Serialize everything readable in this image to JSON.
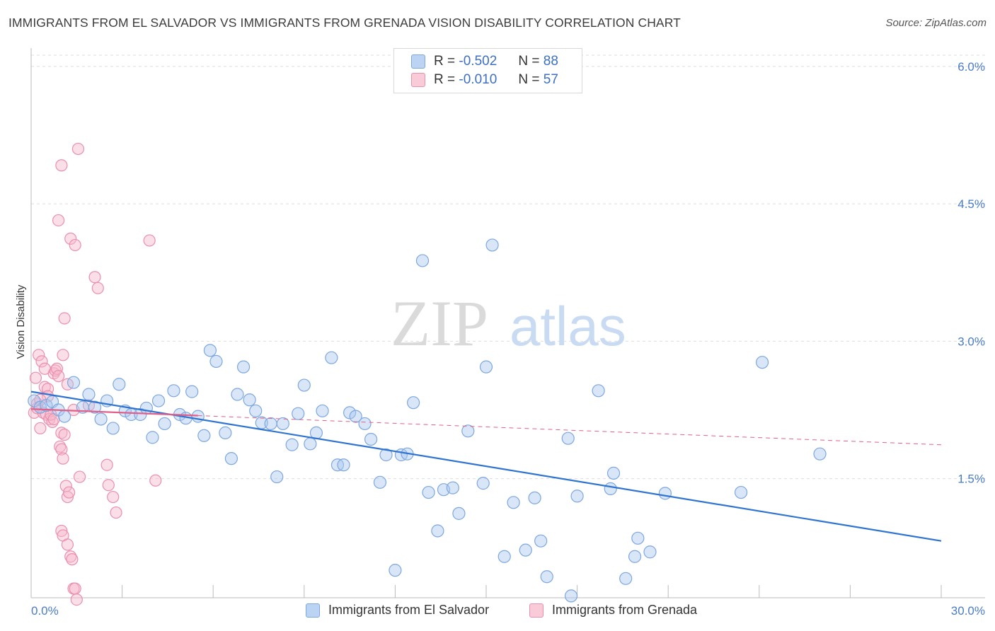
{
  "title": "IMMIGRANTS FROM EL SALVADOR VS IMMIGRANTS FROM GRENADA VISION DISABILITY CORRELATION CHART",
  "source": "Source: ZipAtlas.com",
  "watermark": {
    "zip": "ZIP",
    "atlas": "atlas"
  },
  "colors": {
    "blue_fill": "#a9c8f0",
    "blue_stroke": "#7ea7df",
    "blue_line": "#2f74d0",
    "pink_fill": "#f6b8cb",
    "pink_stroke": "#ea8fac",
    "pink_line": "#e0608a",
    "tick_label": "#4a7cc7",
    "grid": "#dddddd"
  },
  "legend": {
    "rows": [
      {
        "r_label": "R =",
        "r_value": "-0.502",
        "n_label": "N =",
        "n_value": "88"
      },
      {
        "r_label": "R =",
        "r_value": "-0.010",
        "n_label": "N =",
        "n_value": "57"
      }
    ]
  },
  "bottom_legend": [
    "Immigrants from El Salvador",
    "Immigrants from Grenada"
  ],
  "chart_data": {
    "type": "scatter",
    "ylabel": "Vision Disability",
    "xlim": [
      0,
      30
    ],
    "ylim": [
      0.2,
      6.2
    ],
    "x_tick_labels": [
      "0.0%",
      "30.0%"
    ],
    "y_ticks": [
      1.5,
      3.0,
      4.5,
      6.0
    ],
    "y_tick_labels": [
      "1.5%",
      "3.0%",
      "4.5%",
      "6.0%"
    ],
    "grid": "horizontal dashed",
    "legend_placement": "top-center",
    "series": [
      {
        "name": "Immigrants from El Salvador",
        "trend": {
          "x": [
            0,
            30
          ],
          "y": [
            2.45,
            0.82
          ]
        },
        "points": [
          [
            0.1,
            2.35
          ],
          [
            0.3,
            2.28
          ],
          [
            0.5,
            2.3
          ],
          [
            0.7,
            2.34
          ],
          [
            0.9,
            2.25
          ],
          [
            1.1,
            2.18
          ],
          [
            1.4,
            2.55
          ],
          [
            1.7,
            2.28
          ],
          [
            1.9,
            2.42
          ],
          [
            2.1,
            2.28
          ],
          [
            2.3,
            2.15
          ],
          [
            2.5,
            2.35
          ],
          [
            2.7,
            2.05
          ],
          [
            2.9,
            2.53
          ],
          [
            3.1,
            2.24
          ],
          [
            3.3,
            2.2
          ],
          [
            3.6,
            2.2
          ],
          [
            3.8,
            2.27
          ],
          [
            4.0,
            1.95
          ],
          [
            4.2,
            2.35
          ],
          [
            4.4,
            2.1
          ],
          [
            4.7,
            2.46
          ],
          [
            4.9,
            2.2
          ],
          [
            5.1,
            2.16
          ],
          [
            5.3,
            2.45
          ],
          [
            5.5,
            2.18
          ],
          [
            5.7,
            1.97
          ],
          [
            5.9,
            2.9
          ],
          [
            6.1,
            2.78
          ],
          [
            6.4,
            2.0
          ],
          [
            6.6,
            1.72
          ],
          [
            6.8,
            2.42
          ],
          [
            7.0,
            2.72
          ],
          [
            7.2,
            2.36
          ],
          [
            7.4,
            2.24
          ],
          [
            7.6,
            2.11
          ],
          [
            7.9,
            2.1
          ],
          [
            8.1,
            1.52
          ],
          [
            8.3,
            2.1
          ],
          [
            8.6,
            1.87
          ],
          [
            8.8,
            2.21
          ],
          [
            9.0,
            2.52
          ],
          [
            9.2,
            1.88
          ],
          [
            9.4,
            2.0
          ],
          [
            9.6,
            2.24
          ],
          [
            9.9,
            2.82
          ],
          [
            10.1,
            1.65
          ],
          [
            10.3,
            1.65
          ],
          [
            10.5,
            2.22
          ],
          [
            10.7,
            2.18
          ],
          [
            11.0,
            2.1
          ],
          [
            11.2,
            1.93
          ],
          [
            11.5,
            1.46
          ],
          [
            11.7,
            1.76
          ],
          [
            12.0,
            0.5
          ],
          [
            12.2,
            1.76
          ],
          [
            12.4,
            1.77
          ],
          [
            12.6,
            2.33
          ],
          [
            12.9,
            3.88
          ],
          [
            13.1,
            1.35
          ],
          [
            13.4,
            0.93
          ],
          [
            13.6,
            1.38
          ],
          [
            13.9,
            1.4
          ],
          [
            14.1,
            1.12
          ],
          [
            14.4,
            2.02
          ],
          [
            14.9,
            1.45
          ],
          [
            15.2,
            4.05
          ],
          [
            15.6,
            0.65
          ],
          [
            15.0,
            2.72
          ],
          [
            15.9,
            1.24
          ],
          [
            16.3,
            0.72
          ],
          [
            16.6,
            1.29
          ],
          [
            16.8,
            0.82
          ],
          [
            17.0,
            0.43
          ],
          [
            17.7,
            1.94
          ],
          [
            17.8,
            0.22
          ],
          [
            18.0,
            1.31
          ],
          [
            18.7,
            2.46
          ],
          [
            19.2,
            1.56
          ],
          [
            19.1,
            1.39
          ],
          [
            19.6,
            0.41
          ],
          [
            19.9,
            0.65
          ],
          [
            20.0,
            0.85
          ],
          [
            20.4,
            0.7
          ],
          [
            20.9,
            1.34
          ],
          [
            23.4,
            1.35
          ],
          [
            24.1,
            2.77
          ],
          [
            26.0,
            1.77
          ]
        ]
      },
      {
        "name": "Immigrants from Grenada",
        "trend": {
          "x": [
            0,
            30
          ],
          "y": [
            2.26,
            1.87
          ]
        },
        "trend_solid_to_x": 5.5,
        "points": [
          [
            0.1,
            2.22
          ],
          [
            0.2,
            2.27
          ],
          [
            0.3,
            2.05
          ],
          [
            0.15,
            2.6
          ],
          [
            0.25,
            2.85
          ],
          [
            0.35,
            2.78
          ],
          [
            0.45,
            2.5
          ],
          [
            0.55,
            2.48
          ],
          [
            0.4,
            2.22
          ],
          [
            0.5,
            2.2
          ],
          [
            0.6,
            2.15
          ],
          [
            0.7,
            2.12
          ],
          [
            0.75,
            2.65
          ],
          [
            0.8,
            2.68
          ],
          [
            0.85,
            2.7
          ],
          [
            0.9,
            2.62
          ],
          [
            1.0,
            2.0
          ],
          [
            0.95,
            1.85
          ],
          [
            1.1,
            1.98
          ],
          [
            1.0,
            1.82
          ],
          [
            1.05,
            1.72
          ],
          [
            1.15,
            1.42
          ],
          [
            1.2,
            1.3
          ],
          [
            1.25,
            1.35
          ],
          [
            1.3,
            0.65
          ],
          [
            1.35,
            0.62
          ],
          [
            1.4,
            0.3
          ],
          [
            1.45,
            0.3
          ],
          [
            1.5,
            0.18
          ],
          [
            1.6,
            1.52
          ],
          [
            1.0,
            4.92
          ],
          [
            1.55,
            5.1
          ],
          [
            0.9,
            4.32
          ],
          [
            1.3,
            4.12
          ],
          [
            1.45,
            4.05
          ],
          [
            2.1,
            3.7
          ],
          [
            2.2,
            3.58
          ],
          [
            1.1,
            3.25
          ],
          [
            1.05,
            2.85
          ],
          [
            1.2,
            2.53
          ],
          [
            0.45,
            2.7
          ],
          [
            0.55,
            2.4
          ],
          [
            0.65,
            2.2
          ],
          [
            0.75,
            2.15
          ],
          [
            1.0,
            0.93
          ],
          [
            1.05,
            0.88
          ],
          [
            1.2,
            0.78
          ],
          [
            2.5,
            1.65
          ],
          [
            2.55,
            1.43
          ],
          [
            2.7,
            1.3
          ],
          [
            2.8,
            1.13
          ],
          [
            3.9,
            4.1
          ],
          [
            4.1,
            1.48
          ],
          [
            1.4,
            2.25
          ],
          [
            1.9,
            2.3
          ],
          [
            0.2,
            2.32
          ],
          [
            0.3,
            2.36
          ]
        ]
      }
    ]
  }
}
